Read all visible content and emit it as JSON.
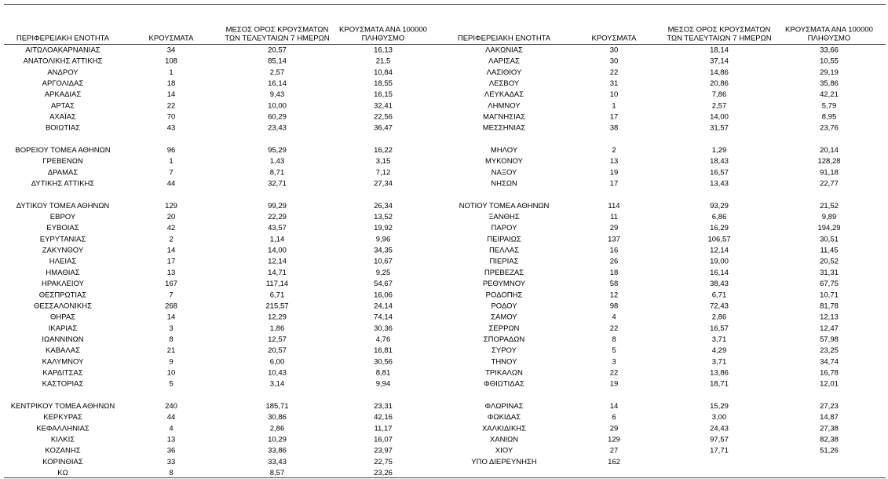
{
  "left": {
    "headers": [
      [
        "ΠΕΡΙΦΕΡΕΙΑΚΗ ΕΝΟΤΗΤΑ"
      ],
      [
        "ΚΡΟΥΣΜΑΤΑ"
      ],
      [
        "ΜΕΣΟΣ ΟΡΟΣ ΚΡΟΥΣΜΑΤΩΝ",
        "ΤΩΝ ΤΕΛΕΥΤΑΙΩΝ 7 ΗΜΕΡΩΝ"
      ],
      [
        "ΚΡΟΥΣΜΑΤΑ ΑΝΑ 100000",
        "ΠΛΗΘΥΣΜΟ"
      ]
    ],
    "groups": [
      [
        [
          "ΑΙΤΩΛΟΑΚΑΡΝΑΝΙΑΣ",
          "34",
          "20,57",
          "16,13"
        ],
        [
          "ΑΝΑΤΟΛΙΚΗΣ ΑΤΤΙΚΗΣ",
          "108",
          "85,14",
          "21,5"
        ],
        [
          "ΑΝΔΡΟΥ",
          "1",
          "2,57",
          "10,84"
        ],
        [
          "ΑΡΓΟΛΙΔΑΣ",
          "18",
          "16,14",
          "18,55"
        ],
        [
          "ΑΡΚΑΔΙΑΣ",
          "14",
          "9,43",
          "16,15"
        ],
        [
          "ΑΡΤΑΣ",
          "22",
          "10,00",
          "32,41"
        ],
        [
          "ΑΧΑΪΑΣ",
          "70",
          "60,29",
          "22,56"
        ],
        [
          "ΒΟΙΩΤΙΑΣ",
          "43",
          "23,43",
          "36,47"
        ]
      ],
      [
        [
          "ΒΟΡΕΙΟΥ ΤΟΜΕΑ ΑΘΗΝΩΝ",
          "96",
          "95,29",
          "16,22"
        ],
        [
          "ΓΡΕΒΕΝΩΝ",
          "1",
          "1,43",
          "3,15"
        ],
        [
          "ΔΡΑΜΑΣ",
          "7",
          "8,71",
          "7,12"
        ],
        [
          "ΔΥΤΙΚΗΣ ΑΤΤΙΚΗΣ",
          "44",
          "32,71",
          "27,34"
        ]
      ],
      [
        [
          "ΔΥΤΙΚΟΥ ΤΟΜΕΑ ΑΘΗΝΩΝ",
          "129",
          "99,29",
          "26,34"
        ],
        [
          "ΕΒΡΟΥ",
          "20",
          "22,29",
          "13,52"
        ],
        [
          "ΕΥΒΟΙΑΣ",
          "42",
          "43,57",
          "19,92"
        ],
        [
          "ΕΥΡΥΤΑΝΙΑΣ",
          "2",
          "1,14",
          "9,96"
        ],
        [
          "ΖΑΚΥΝΘΟΥ",
          "14",
          "14,00",
          "34,35"
        ],
        [
          "ΗΛΕΙΑΣ",
          "17",
          "12,14",
          "10,67"
        ],
        [
          "ΗΜΑΘΙΑΣ",
          "13",
          "14,71",
          "9,25"
        ],
        [
          "ΗΡΑΚΛΕΙΟΥ",
          "167",
          "117,14",
          "54,67"
        ],
        [
          "ΘΕΣΠΡΩΤΙΑΣ",
          "7",
          "6,71",
          "16,06"
        ],
        [
          "ΘΕΣΣΑΛΟΝΙΚΗΣ",
          "268",
          "215,57",
          "24,14"
        ],
        [
          "ΘΗΡΑΣ",
          "14",
          "12,29",
          "74,14"
        ],
        [
          "ΙΚΑΡΙΑΣ",
          "3",
          "1,86",
          "30,36"
        ],
        [
          "ΙΩΑΝΝΙΝΩΝ",
          "8",
          "12,57",
          "4,76"
        ],
        [
          "ΚΑΒΑΛΑΣ",
          "21",
          "20,57",
          "16,81"
        ],
        [
          "ΚΑΛΥΜΝΟΥ",
          "9",
          "6,00",
          "30,56"
        ],
        [
          "ΚΑΡΔΙΤΣΑΣ",
          "10",
          "10,43",
          "8,81"
        ],
        [
          "ΚΑΣΤΟΡΙΑΣ",
          "5",
          "3,14",
          "9,94"
        ]
      ],
      [
        [
          "ΚΕΝΤΡΙΚΟΥ ΤΟΜΕΑ ΑΘΗΝΩΝ",
          "240",
          "185,71",
          "23,31"
        ],
        [
          "ΚΕΡΚΥΡΑΣ",
          "44",
          "30,86",
          "42,16"
        ],
        [
          "ΚΕΦΑΛΛΗΝΙΑΣ",
          "4",
          "2,86",
          "11,17"
        ],
        [
          "ΚΙΛΚΙΣ",
          "13",
          "10,29",
          "16,07"
        ],
        [
          "ΚΟΖΑΝΗΣ",
          "36",
          "33,86",
          "23,97"
        ],
        [
          "ΚΟΡΙΝΘΙΑΣ",
          "33",
          "33,43",
          "22,75"
        ],
        [
          "ΚΩ",
          "8",
          "8,57",
          "23,26"
        ]
      ]
    ]
  },
  "right": {
    "headers": [
      [
        "ΠΕΡΙΦΕΡΕΙΑΚΗ ΕΝΟΤΗΤΑ"
      ],
      [
        "ΚΡΟΥΣΜΑΤΑ"
      ],
      [
        "ΜΕΣΟΣ ΟΡΟΣ ΚΡΟΥΣΜΑΤΩΝ",
        "ΤΩΝ ΤΕΛΕΥΤΑΙΩΝ 7 ΗΜΕΡΩΝ"
      ],
      [
        "ΚΡΟΥΣΜΑΤΑ ΑΝΑ 100000",
        "ΠΛΗΘΥΣΜΟ"
      ]
    ],
    "groups": [
      [
        [
          "ΛΑΚΩΝΙΑΣ",
          "30",
          "18,14",
          "33,66"
        ],
        [
          "ΛΑΡΙΣΑΣ",
          "30",
          "37,14",
          "10,55"
        ],
        [
          "ΛΑΣΙΘΙΟΥ",
          "22",
          "14,86",
          "29,19"
        ],
        [
          "ΛΕΣΒΟΥ",
          "31",
          "20,86",
          "35,86"
        ],
        [
          "ΛΕΥΚΑΔΑΣ",
          "10",
          "7,86",
          "42,21"
        ],
        [
          "ΛΗΜΝΟΥ",
          "1",
          "2,57",
          "5,79"
        ],
        [
          "ΜΑΓΝΗΣΙΑΣ",
          "17",
          "14,00",
          "8,95"
        ],
        [
          "ΜΕΣΣΗΝΙΑΣ",
          "38",
          "31,57",
          "23,76"
        ]
      ],
      [
        [
          "ΜΗΛΟΥ",
          "2",
          "1,29",
          "20,14"
        ],
        [
          "ΜΥΚΟΝΟΥ",
          "13",
          "18,43",
          "128,28"
        ],
        [
          "ΝΑΞΟΥ",
          "19",
          "16,57",
          "91,18"
        ],
        [
          "ΝΗΣΩΝ",
          "17",
          "13,43",
          "22,77"
        ]
      ],
      [
        [
          "ΝΟΤΙΟΥ ΤΟΜΕΑ ΑΘΗΝΩΝ",
          "114",
          "93,29",
          "21,52"
        ],
        [
          "ΞΑΝΘΗΣ",
          "11",
          "6,86",
          "9,89"
        ],
        [
          "ΠΑΡΟΥ",
          "29",
          "16,29",
          "194,29"
        ],
        [
          "ΠΕΙΡΑΙΩΣ",
          "137",
          "106,57",
          "30,51"
        ],
        [
          "ΠΕΛΛΑΣ",
          "16",
          "12,14",
          "11,45"
        ],
        [
          "ΠΙΕΡΙΑΣ",
          "26",
          "19,00",
          "20,52"
        ],
        [
          "ΠΡΕΒΕΖΑΣ",
          "18",
          "16,14",
          "31,31"
        ],
        [
          "ΡΕΘΥΜΝΟΥ",
          "58",
          "38,43",
          "67,75"
        ],
        [
          "ΡΟΔΟΠΗΣ",
          "12",
          "6,71",
          "10,71"
        ],
        [
          "ΡΟΔΟΥ",
          "98",
          "72,43",
          "81,78"
        ],
        [
          "ΣΑΜΟΥ",
          "4",
          "2,86",
          "12,13"
        ],
        [
          "ΣΕΡΡΩΝ",
          "22",
          "16,57",
          "12,47"
        ],
        [
          "ΣΠΟΡΑΔΩΝ",
          "8",
          "3,71",
          "57,98"
        ],
        [
          "ΣΥΡΟΥ",
          "5",
          "4,29",
          "23,25"
        ],
        [
          "ΤΗΝΟΥ",
          "3",
          "3,71",
          "34,74"
        ],
        [
          "ΤΡΙΚΑΛΩΝ",
          "22",
          "13,86",
          "16,78"
        ],
        [
          "ΦΘΙΩΤΙΔΑΣ",
          "19",
          "18,71",
          "12,01"
        ]
      ],
      [
        [
          "ΦΛΩΡΙΝΑΣ",
          "14",
          "15,29",
          "27,23"
        ],
        [
          "ΦΩΚΙΔΑΣ",
          "6",
          "3,00",
          "14,87"
        ],
        [
          "ΧΑΛΚΙΔΙΚΗΣ",
          "29",
          "24,43",
          "27,38"
        ],
        [
          "ΧΑΝΙΩΝ",
          "129",
          "97,57",
          "82,38"
        ],
        [
          "ΧΙΟΥ",
          "27",
          "17,71",
          "51,26"
        ],
        [
          "ΥΠΟ ΔΙΕΡΕΥΝΗΣΗ",
          "162"
        ]
      ]
    ]
  }
}
